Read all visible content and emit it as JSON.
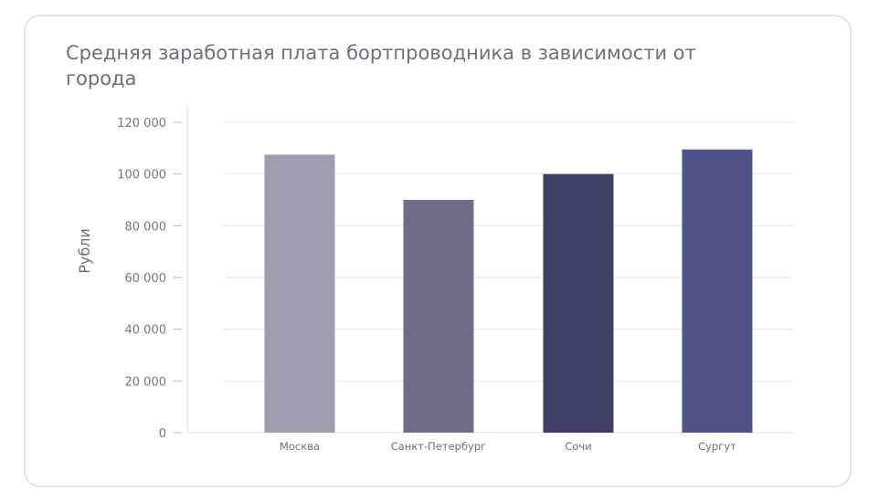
{
  "chart_data": {
    "type": "bar",
    "title": "Средняя заработная плата бортпроводника в зависимости от города",
    "xlabel": "",
    "ylabel": "Рубли",
    "categories": [
      "Москва",
      "Санкт-Петербург",
      "Сочи",
      "Сургут"
    ],
    "values": [
      107500,
      90000,
      100000,
      109500
    ],
    "colors": [
      "#9e9db2",
      "#706d8a",
      "#403e66",
      "#505386"
    ],
    "ylim": [
      0,
      120000
    ],
    "yticks": [
      0,
      20000,
      40000,
      60000,
      80000,
      100000,
      120000
    ],
    "ytick_labels": [
      "0",
      "20 000",
      "40 000",
      "60 000",
      "80 000",
      "100 000",
      "120 000"
    ],
    "grid": true,
    "legend": "none"
  }
}
